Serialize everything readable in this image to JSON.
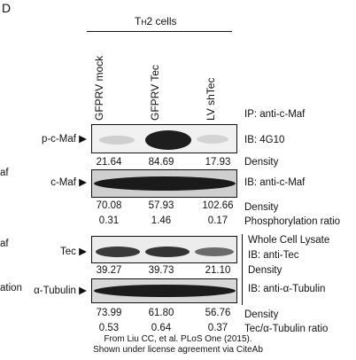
{
  "panel_letter": "D",
  "header": {
    "prefix": "T",
    "subscript": "H",
    "rest": "2 cells"
  },
  "lanes": [
    "GFPRV mock",
    "GFPRV Tec",
    "LV shTec"
  ],
  "ip_label": "IP: anti-c-Maf",
  "blots": {
    "pcmaf": {
      "left_label": "p-c-Maf",
      "right_label": "IB: 4G10",
      "values": [
        "21.64",
        "84.69",
        "17.93"
      ],
      "value_label": "Density"
    },
    "cmaf": {
      "left_label": "c-Maf",
      "right_label": "IB: anti-c-Maf",
      "values": [
        "70.08",
        "57.93",
        "102.66"
      ],
      "value_label": "Density",
      "ratios": [
        "0.31",
        "1.46",
        "0.17"
      ],
      "ratio_label": "Phosphorylation ratio"
    },
    "tec": {
      "left_label": "Tec",
      "lysate_label": "Whole Cell Lysate",
      "right_label": "IB: anti-Tec",
      "values": [
        "39.27",
        "39.73",
        "21.10"
      ],
      "value_label": "Density"
    },
    "tubulin": {
      "left_label": "α-Tubulin",
      "right_label": "IB: anti-α-Tubulin",
      "values": [
        "73.99",
        "61.80",
        "56.76"
      ],
      "value_label": "Density",
      "ratios": [
        "0.53",
        "0.64",
        "0.37"
      ],
      "ratio_label": "Tec/α-Tubulin ratio"
    }
  },
  "cut_labels": [
    "af",
    "af",
    "ation"
  ],
  "arrow": "▶",
  "caption": [
    "From Liu CC, et al. PLoS One (2015).",
    "Shown under license agreement via CiteAb"
  ]
}
